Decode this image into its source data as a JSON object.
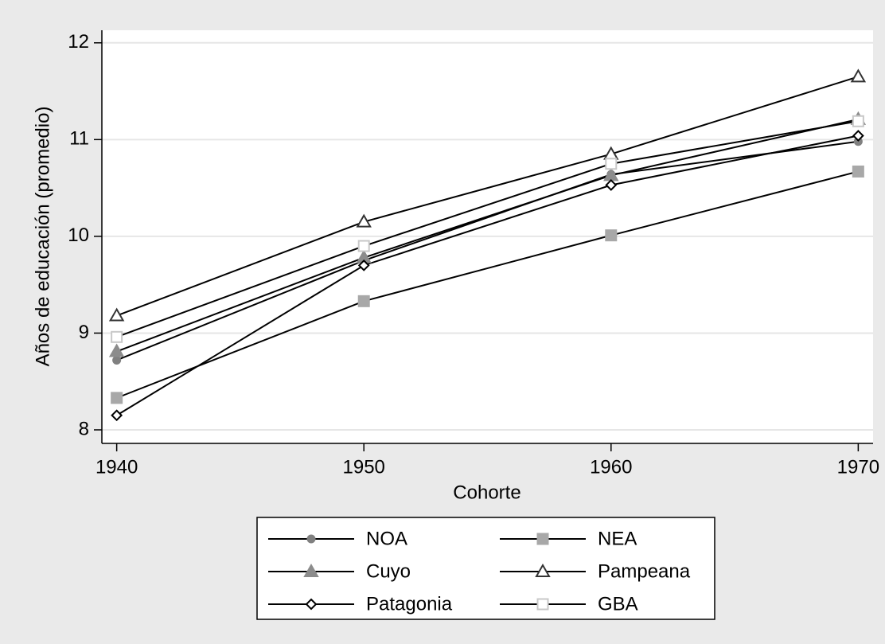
{
  "chart_data": {
    "type": "line",
    "x_label": "Cohorte",
    "y_label": "Años de educación (promedio)",
    "x": [
      1940,
      1950,
      1960,
      1970
    ],
    "xlim": [
      1939.4,
      1970.6
    ],
    "xticks": [
      1940,
      1950,
      1960,
      1970
    ],
    "ylim": [
      7.86,
      12.13
    ],
    "yticks": [
      8,
      9,
      10,
      11,
      12
    ],
    "grid": true,
    "line_color": "#000000",
    "series": [
      {
        "name": "NOA",
        "color": "#808080",
        "marker": "circle",
        "filled": true,
        "values": [
          8.72,
          9.75,
          10.64,
          10.98
        ]
      },
      {
        "name": "NEA",
        "color": "#a8a8a8",
        "marker": "square",
        "filled": true,
        "values": [
          8.33,
          9.33,
          10.01,
          10.67
        ]
      },
      {
        "name": "Cuyo",
        "color": "#8c8c8c",
        "marker": "triangle",
        "filled": true,
        "values": [
          8.81,
          9.78,
          10.63,
          11.21
        ]
      },
      {
        "name": "Pampeana",
        "color": "#333333",
        "marker": "triangle",
        "filled": false,
        "values": [
          9.18,
          10.15,
          10.85,
          11.65
        ]
      },
      {
        "name": "Patagonia",
        "color": "#000000",
        "marker": "diamond",
        "filled": false,
        "values": [
          8.15,
          9.7,
          10.53,
          11.04
        ]
      },
      {
        "name": "GBA",
        "color": "#c8c8c8",
        "marker": "square",
        "filled": false,
        "values": [
          8.96,
          9.9,
          10.75,
          11.19
        ]
      }
    ]
  }
}
